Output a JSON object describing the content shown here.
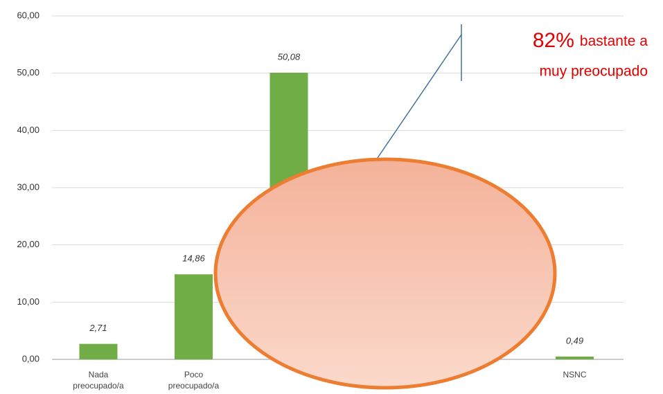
{
  "chart_data": {
    "type": "bar",
    "categories": [
      "Nada preocupado/a",
      "Poco preocupado/a",
      null,
      null,
      null,
      "NSNC"
    ],
    "values": [
      2.71,
      14.86,
      50.08,
      null,
      null,
      0.49
    ],
    "value_labels": [
      "2,71",
      "14,86",
      "50,08",
      null,
      null,
      "0,49"
    ],
    "color": "#70ad47",
    "ylim": [
      0,
      60
    ],
    "yticks": [
      {
        "value": 0,
        "label": "0,00"
      },
      {
        "value": 10,
        "label": "10,00"
      },
      {
        "value": 20,
        "label": "20,00"
      },
      {
        "value": 30,
        "label": "30,00"
      },
      {
        "value": 40,
        "label": "40,00"
      },
      {
        "value": 50,
        "label": "50,00"
      },
      {
        "value": 60,
        "label": "60,00"
      }
    ],
    "grid": true,
    "annotation": {
      "highlight": "82%",
      "line1": "bastante a",
      "line2": "muy preocupado"
    }
  }
}
